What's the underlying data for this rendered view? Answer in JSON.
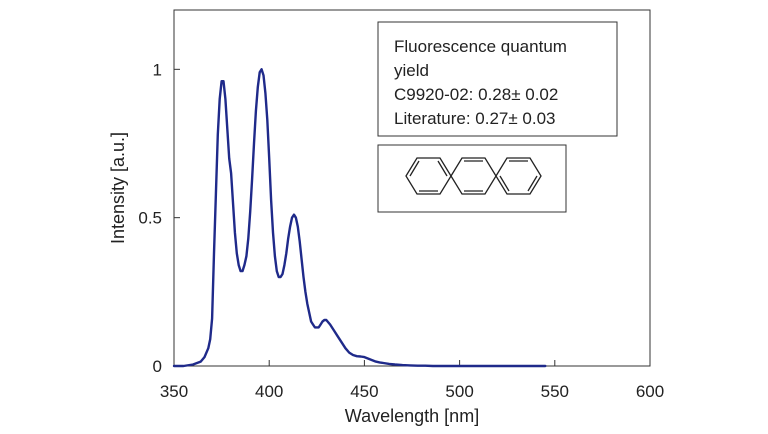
{
  "chart_data": {
    "type": "line",
    "xlabel": "Wavelength [nm]",
    "ylabel": "Intensity [a.u.]",
    "xlim": [
      350,
      600
    ],
    "ylim": [
      0,
      1.2
    ],
    "xticks": [
      350,
      400,
      450,
      500,
      550,
      600
    ],
    "xtick_labels": [
      "350",
      "400",
      "450",
      "500",
      "550",
      "600"
    ],
    "yticks": [
      0,
      0.5,
      1
    ],
    "ytick_labels": [
      "0",
      "0.5",
      "1"
    ],
    "grid": false,
    "line_color": "#1f2a8a",
    "series": [
      {
        "x": [
          350,
          355,
          360,
          364,
          366,
          368,
          369,
          370,
          371,
          372,
          373,
          374,
          375,
          376,
          377,
          378,
          379,
          380,
          381,
          382,
          383,
          384,
          385,
          386,
          387,
          388,
          389,
          390,
          391,
          392,
          393,
          394,
          395,
          396,
          397,
          398,
          399,
          400,
          401,
          402,
          403,
          404,
          405,
          406,
          407,
          408,
          409,
          410,
          411,
          412,
          413,
          414,
          415,
          416,
          417,
          418,
          419,
          420,
          421,
          422,
          423,
          424,
          425,
          426,
          427,
          428,
          429,
          430,
          432,
          434,
          436,
          438,
          440,
          442,
          444,
          446,
          448,
          450,
          452,
          454,
          456,
          458,
          460,
          463,
          466,
          470,
          474,
          478,
          482,
          486,
          490,
          495,
          500,
          510,
          520,
          530,
          545
        ],
        "y": [
          0.0,
          0.0,
          0.005,
          0.015,
          0.03,
          0.06,
          0.09,
          0.16,
          0.38,
          0.58,
          0.78,
          0.9,
          0.96,
          0.96,
          0.9,
          0.8,
          0.7,
          0.65,
          0.55,
          0.45,
          0.38,
          0.34,
          0.32,
          0.32,
          0.34,
          0.37,
          0.43,
          0.52,
          0.63,
          0.75,
          0.86,
          0.94,
          0.99,
          1.0,
          0.98,
          0.92,
          0.83,
          0.7,
          0.56,
          0.45,
          0.37,
          0.32,
          0.3,
          0.3,
          0.31,
          0.34,
          0.38,
          0.43,
          0.47,
          0.5,
          0.51,
          0.5,
          0.47,
          0.42,
          0.36,
          0.3,
          0.25,
          0.21,
          0.18,
          0.15,
          0.14,
          0.13,
          0.13,
          0.13,
          0.14,
          0.15,
          0.155,
          0.155,
          0.14,
          0.12,
          0.1,
          0.08,
          0.06,
          0.045,
          0.037,
          0.033,
          0.032,
          0.03,
          0.025,
          0.02,
          0.015,
          0.012,
          0.01,
          0.007,
          0.005,
          0.003,
          0.002,
          0.001,
          0.001,
          0.0,
          0.0,
          0.0,
          0.0,
          0.0,
          0.0,
          0.0,
          0.0
        ]
      }
    ],
    "legend": {
      "lines": [
        "Fluorescence quantum",
        "yield",
        "C9920-02: 0.28± 0.02",
        "Literature: 0.27± 0.03"
      ]
    }
  }
}
